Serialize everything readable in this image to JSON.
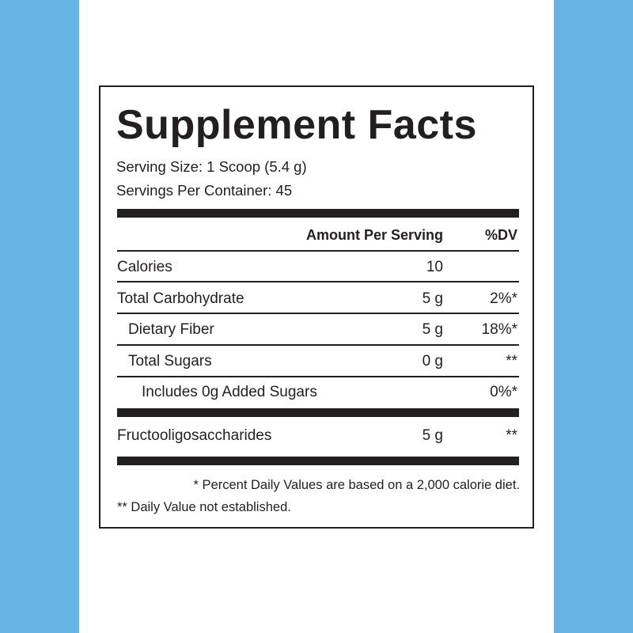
{
  "background_color": "#66b4e3",
  "label": {
    "title": "Supplement Facts",
    "serving_size": "Serving Size: 1 Scoop (5.4 g)",
    "servings_per_container": "Servings Per Container: 45",
    "header": {
      "amount": "Amount Per Serving",
      "dv": "%DV"
    },
    "rows": [
      {
        "name": "Calories",
        "amount": "10",
        "dv": ""
      },
      {
        "name": "Total Carbohydrate",
        "amount": "5 g",
        "dv": "2%*"
      },
      {
        "name": "Dietary Fiber",
        "amount": "5 g",
        "dv": "18%*"
      },
      {
        "name": "Total Sugars",
        "amount": "0 g",
        "dv": "**"
      },
      {
        "name": "Includes 0g Added Sugars",
        "amount": "",
        "dv": "0%*"
      },
      {
        "name": "Fructooligosaccharides",
        "amount": "5 g",
        "dv": "**"
      }
    ],
    "footnotes": [
      "* Percent Daily Values are based on a 2,000 calorie diet.",
      "** Daily Value not established."
    ]
  }
}
